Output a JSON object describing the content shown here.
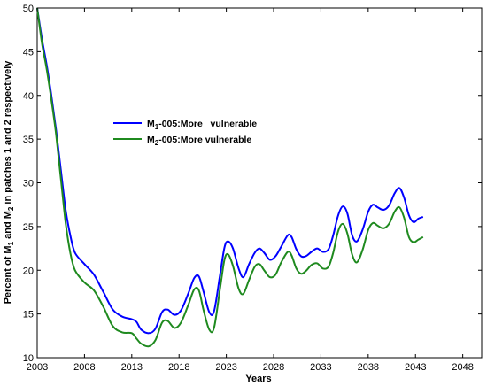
{
  "chart_data": {
    "type": "line",
    "xlabel": "Years",
    "ylabel": {
      "base": "Percent of M",
      "sub1": "1",
      "mid": " and M",
      "sub2": "2",
      "tail": " in patches 1 and 2 respectively"
    },
    "xlim": [
      2003,
      2050
    ],
    "ylim": [
      10,
      50
    ],
    "xticks": [
      2003,
      2008,
      2013,
      2018,
      2023,
      2028,
      2033,
      2038,
      2043,
      2048
    ],
    "yticks": [
      10,
      15,
      20,
      25,
      30,
      35,
      40,
      45,
      50
    ],
    "grid": false,
    "legend": "upper-middle",
    "series": [
      {
        "name": {
          "pre": "M",
          "sub": "1",
          "post": "-005:More   vulnerable"
        },
        "color": "#0000ff",
        "points": [
          [
            2003,
            50
          ],
          [
            2003.5,
            46.5
          ],
          [
            2004,
            43.5
          ],
          [
            2004.5,
            40
          ],
          [
            2005,
            36
          ],
          [
            2005.5,
            31.5
          ],
          [
            2006,
            27
          ],
          [
            2006.5,
            24
          ],
          [
            2007,
            22
          ],
          [
            2008,
            20.7
          ],
          [
            2009,
            19.5
          ],
          [
            2010,
            17.5
          ],
          [
            2011,
            15.5
          ],
          [
            2012,
            14.7
          ],
          [
            2013,
            14.4
          ],
          [
            2013.5,
            14.1
          ],
          [
            2014,
            13.2
          ],
          [
            2014.8,
            12.8
          ],
          [
            2015.5,
            13.3
          ],
          [
            2016.2,
            15.2
          ],
          [
            2016.8,
            15.5
          ],
          [
            2017.5,
            14.9
          ],
          [
            2018.2,
            15.4
          ],
          [
            2019,
            17.4
          ],
          [
            2019.6,
            19.1
          ],
          [
            2020.1,
            19.3
          ],
          [
            2020.6,
            17.5
          ],
          [
            2021.2,
            15.2
          ],
          [
            2021.7,
            15.3
          ],
          [
            2022.3,
            19.2
          ],
          [
            2022.8,
            22.6
          ],
          [
            2023.2,
            23.3
          ],
          [
            2023.7,
            22.5
          ],
          [
            2024.3,
            20.2
          ],
          [
            2024.8,
            19.2
          ],
          [
            2025.4,
            20.7
          ],
          [
            2026,
            22
          ],
          [
            2026.5,
            22.5
          ],
          [
            2027,
            22
          ],
          [
            2027.6,
            21.2
          ],
          [
            2028.2,
            21.6
          ],
          [
            2028.8,
            22.7
          ],
          [
            2029.5,
            24
          ],
          [
            2029.9,
            23.8
          ],
          [
            2030.4,
            22.4
          ],
          [
            2030.9,
            21.6
          ],
          [
            2031.4,
            21.6
          ],
          [
            2032,
            22.1
          ],
          [
            2032.6,
            22.5
          ],
          [
            2033.2,
            22.1
          ],
          [
            2033.8,
            22.4
          ],
          [
            2034.3,
            24
          ],
          [
            2034.8,
            26.2
          ],
          [
            2035.3,
            27.3
          ],
          [
            2035.8,
            26.5
          ],
          [
            2036.3,
            24
          ],
          [
            2036.8,
            23.3
          ],
          [
            2037.4,
            24.6
          ],
          [
            2038,
            26.7
          ],
          [
            2038.5,
            27.5
          ],
          [
            2039,
            27.2
          ],
          [
            2039.6,
            26.9
          ],
          [
            2040.2,
            27.4
          ],
          [
            2040.8,
            28.8
          ],
          [
            2041.3,
            29.4
          ],
          [
            2041.8,
            28.3
          ],
          [
            2042.3,
            26.3
          ],
          [
            2042.8,
            25.5
          ],
          [
            2043.3,
            25.9
          ],
          [
            2043.8,
            26.1
          ]
        ]
      },
      {
        "name": {
          "pre": "M",
          "sub": "2",
          "post": "-005:More vulnerable"
        },
        "color": "#1f8a1f",
        "points": [
          [
            2003,
            50
          ],
          [
            2003.5,
            46
          ],
          [
            2004,
            43
          ],
          [
            2004.5,
            39.5
          ],
          [
            2005,
            35.5
          ],
          [
            2005.5,
            30.5
          ],
          [
            2006,
            25.5
          ],
          [
            2006.5,
            22
          ],
          [
            2007,
            20
          ],
          [
            2008,
            18.6
          ],
          [
            2009,
            17.7
          ],
          [
            2010,
            15.8
          ],
          [
            2011,
            13.6
          ],
          [
            2012,
            12.9
          ],
          [
            2013,
            12.8
          ],
          [
            2013.5,
            12.2
          ],
          [
            2014,
            11.6
          ],
          [
            2014.8,
            11.3
          ],
          [
            2015.5,
            12
          ],
          [
            2016.2,
            14
          ],
          [
            2016.8,
            14.2
          ],
          [
            2017.5,
            13.4
          ],
          [
            2018.2,
            14
          ],
          [
            2019,
            16.1
          ],
          [
            2019.6,
            17.8
          ],
          [
            2020.1,
            17.7
          ],
          [
            2020.6,
            15.4
          ],
          [
            2021.2,
            13.2
          ],
          [
            2021.7,
            13.4
          ],
          [
            2022.3,
            17.6
          ],
          [
            2022.8,
            21.2
          ],
          [
            2023.2,
            21.8
          ],
          [
            2023.7,
            20.5
          ],
          [
            2024.3,
            17.9
          ],
          [
            2024.8,
            17.3
          ],
          [
            2025.4,
            18.9
          ],
          [
            2026,
            20.4
          ],
          [
            2026.5,
            20.7
          ],
          [
            2027,
            20
          ],
          [
            2027.6,
            19.2
          ],
          [
            2028.2,
            19.5
          ],
          [
            2028.8,
            20.9
          ],
          [
            2029.5,
            22.1
          ],
          [
            2029.9,
            21.7
          ],
          [
            2030.4,
            20.2
          ],
          [
            2030.9,
            19.6
          ],
          [
            2031.4,
            19.9
          ],
          [
            2032,
            20.6
          ],
          [
            2032.6,
            20.8
          ],
          [
            2033.2,
            20.2
          ],
          [
            2033.8,
            20.4
          ],
          [
            2034.3,
            22
          ],
          [
            2034.8,
            24.4
          ],
          [
            2035.3,
            25.3
          ],
          [
            2035.8,
            24.2
          ],
          [
            2036.3,
            21.8
          ],
          [
            2036.8,
            20.9
          ],
          [
            2037.4,
            22.3
          ],
          [
            2038,
            24.6
          ],
          [
            2038.5,
            25.4
          ],
          [
            2039,
            25.1
          ],
          [
            2039.6,
            24.8
          ],
          [
            2040.2,
            25.3
          ],
          [
            2040.8,
            26.7
          ],
          [
            2041.3,
            27.2
          ],
          [
            2041.8,
            26
          ],
          [
            2042.3,
            23.8
          ],
          [
            2042.8,
            23.2
          ],
          [
            2043.3,
            23.5
          ],
          [
            2043.8,
            23.8
          ]
        ]
      }
    ]
  }
}
